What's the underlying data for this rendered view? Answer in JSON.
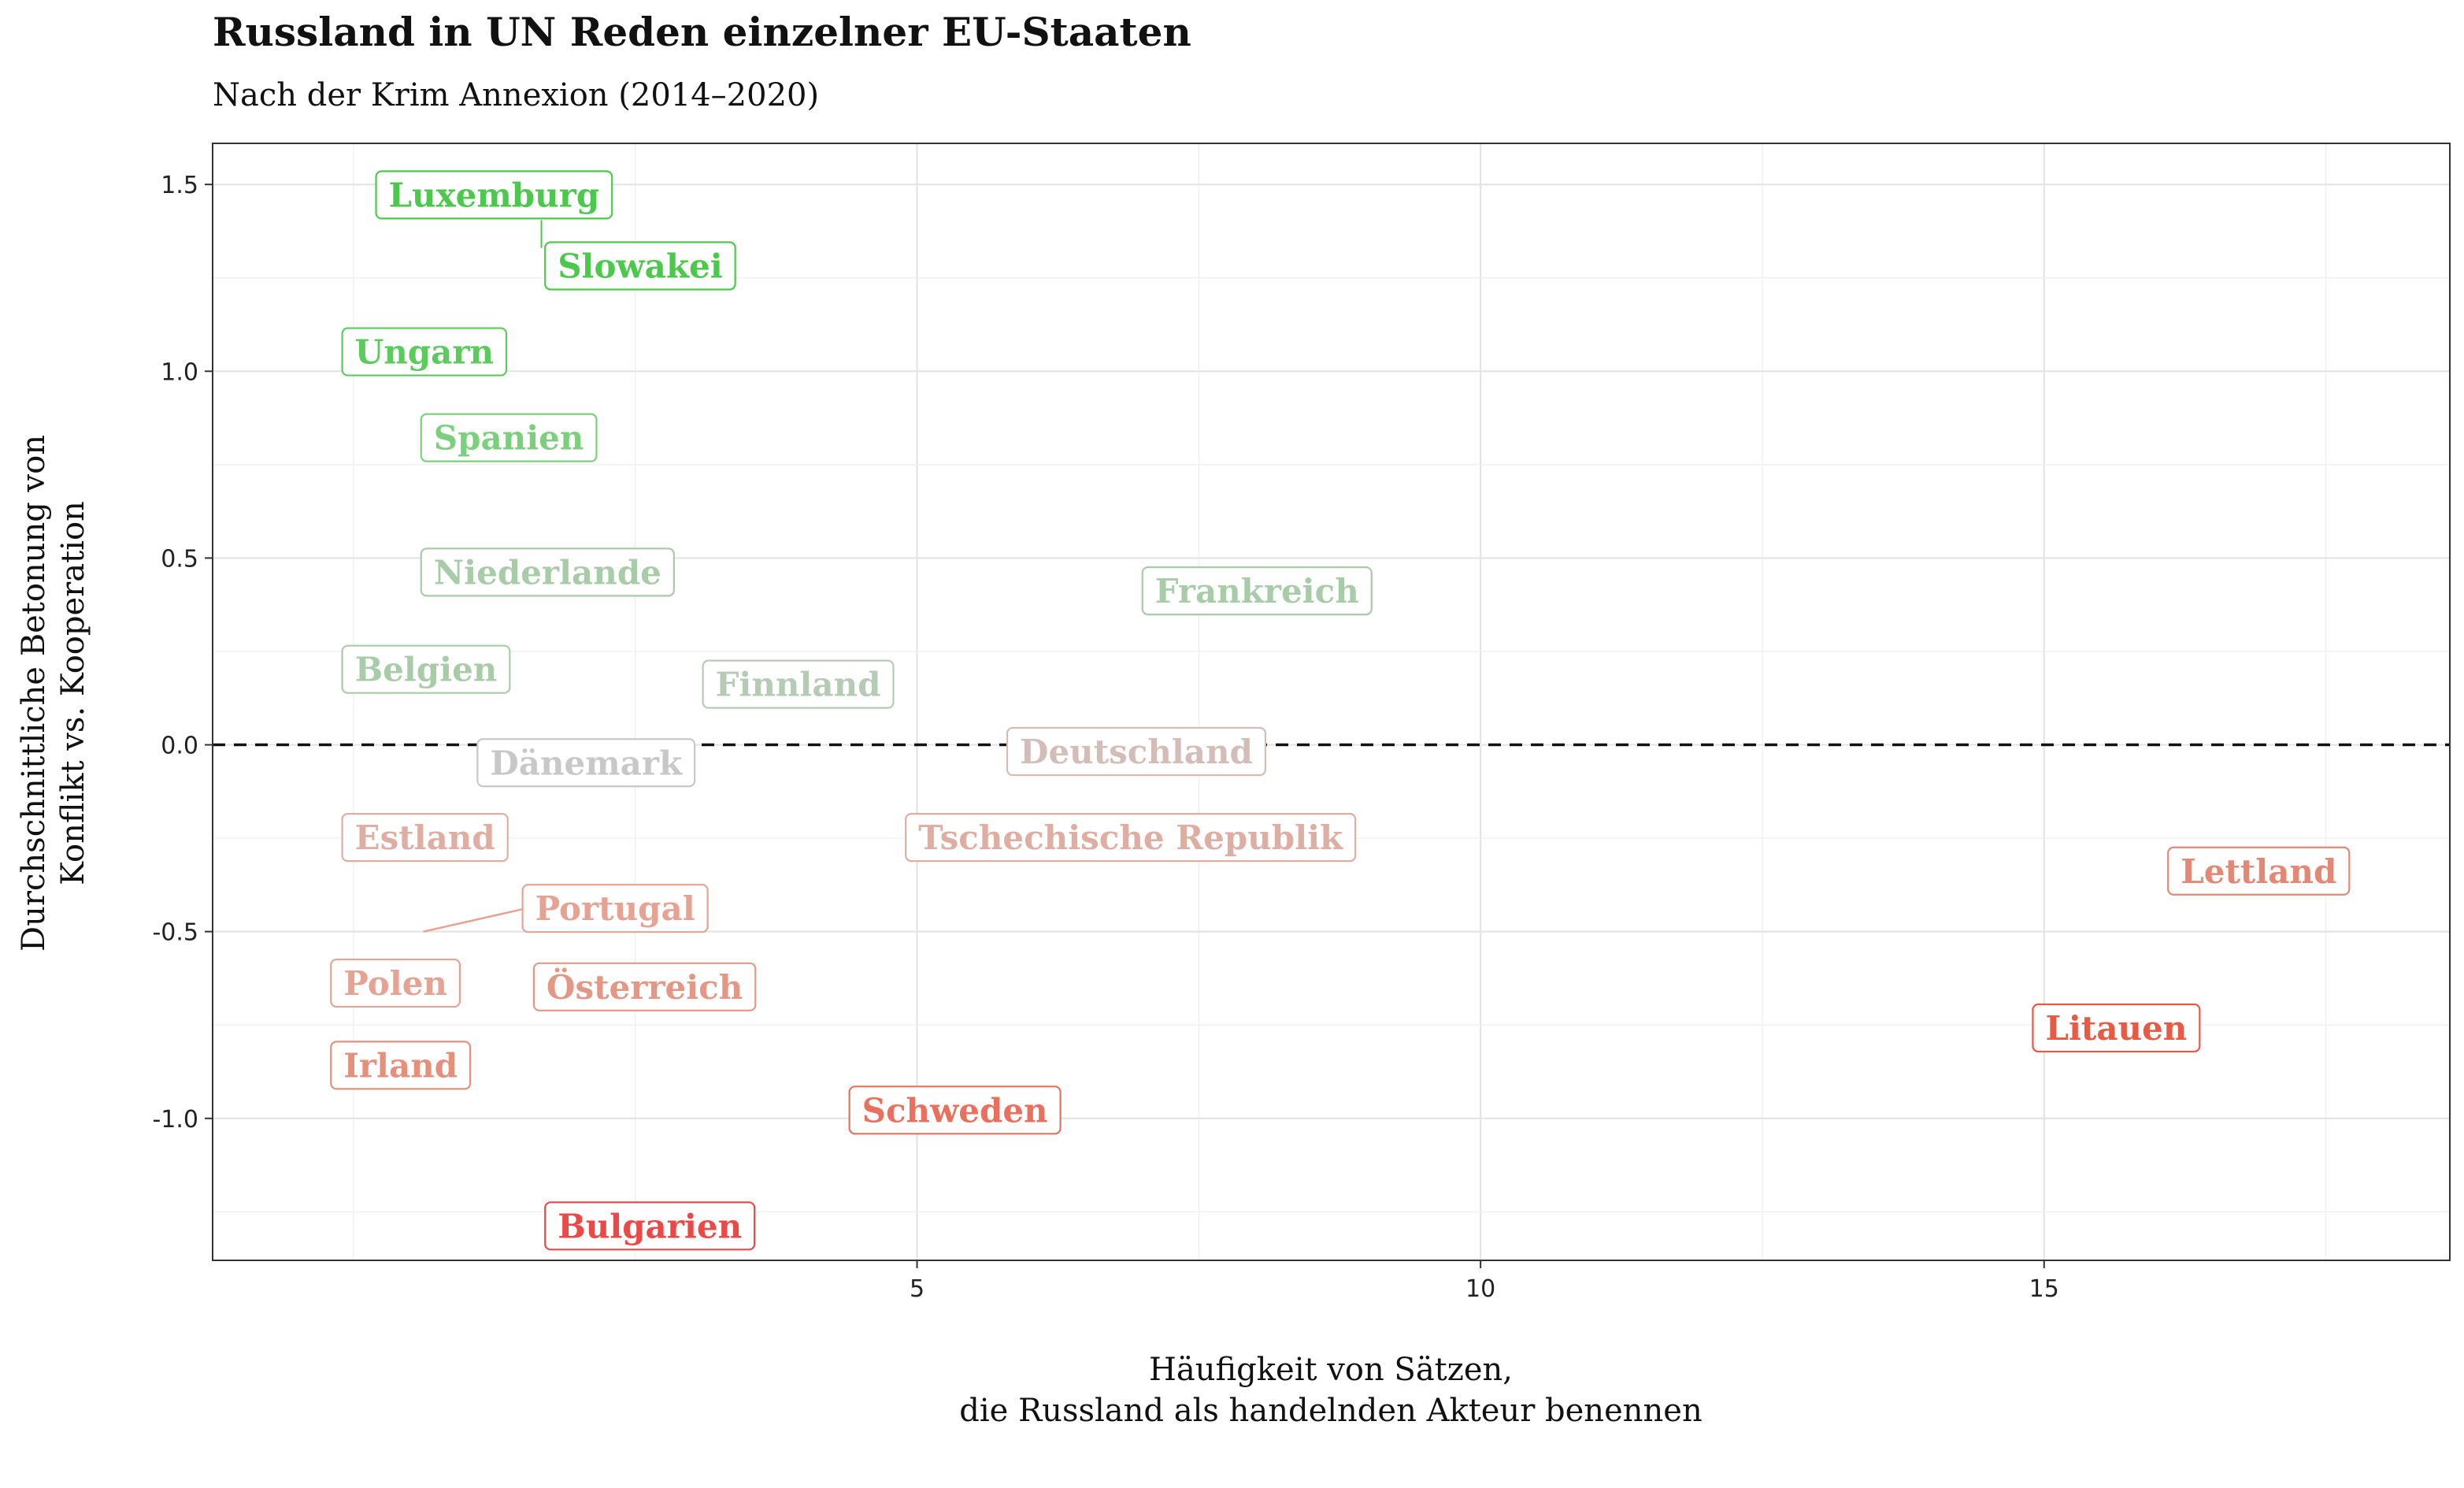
{
  "chart_data": {
    "type": "scatter",
    "title": "Russland in UN Reden einzelner EU-Staaten",
    "subtitle": "Nach der Krim Annexion (2014–2020)",
    "xlabel": [
      "Häufigkeit von Sätzen,",
      "die Russland als handelnden Akteur benennen"
    ],
    "ylabel": [
      "Durchschnittliche Betonung von",
      "Konflikt vs. Kooperation"
    ],
    "xlim": [
      -1.25,
      18.6
    ],
    "ylim": [
      -1.38,
      1.61
    ],
    "x_ticks": [
      5,
      10,
      15
    ],
    "x_tick_labels": [
      "5",
      "10",
      "15"
    ],
    "y_ticks": [
      -1.0,
      -0.5,
      0.0,
      0.5,
      1.0,
      1.5
    ],
    "y_tick_labels": [
      "-1.0",
      "-0.5",
      "0.0",
      "0.5",
      "1.0",
      "1.5"
    ],
    "reference_line": {
      "y": 0,
      "style": "dashed"
    },
    "grid": true,
    "points": [
      {
        "label": "Luxemburg",
        "x": 0.2,
        "y": 1.47,
        "color": "#4cc94c"
      },
      {
        "label": "Slowakei",
        "x": 1.7,
        "y": 1.28,
        "color": "#4cc94c"
      },
      {
        "label": "Ungarn",
        "x": -0.1,
        "y": 1.05,
        "color": "#5bcb5b"
      },
      {
        "label": "Spanien",
        "x": 0.6,
        "y": 0.82,
        "color": "#7ccf7c"
      },
      {
        "label": "Niederlande",
        "x": 0.6,
        "y": 0.46,
        "color": "#a8cca8"
      },
      {
        "label": "Frankreich",
        "x": 7.0,
        "y": 0.41,
        "color": "#a8cca8"
      },
      {
        "label": "Belgien",
        "x": -0.1,
        "y": 0.2,
        "color": "#a8cca8"
      },
      {
        "label": "Finnland",
        "x": 3.1,
        "y": 0.16,
        "color": "#b5cbb5"
      },
      {
        "label": "Deutschland",
        "x": 5.8,
        "y": -0.02,
        "color": "#d4bdb8"
      },
      {
        "label": "Dänemark",
        "x": 1.1,
        "y": -0.05,
        "color": "#c8c8c8"
      },
      {
        "label": "Estland",
        "x": -0.1,
        "y": -0.25,
        "color": "#dfaea2"
      },
      {
        "label": "Tschechische Republik",
        "x": 4.9,
        "y": -0.25,
        "color": "#dfaea2"
      },
      {
        "label": "Lettland",
        "x": 16.1,
        "y": -0.34,
        "color": "#e28874"
      },
      {
        "label": "Portugal",
        "x": 1.5,
        "y": -0.44,
        "color": "#e6a292"
      },
      {
        "label": "Polen",
        "x": -0.2,
        "y": -0.64,
        "color": "#e6a292"
      },
      {
        "label": "Österreich",
        "x": 1.6,
        "y": -0.65,
        "color": "#e39886"
      },
      {
        "label": "Litauen",
        "x": 14.9,
        "y": -0.76,
        "color": "#e65a46"
      },
      {
        "label": "Irland",
        "x": -0.2,
        "y": -0.86,
        "color": "#e6907c"
      },
      {
        "label": "Schweden",
        "x": 4.4,
        "y": -0.98,
        "color": "#e9705c"
      },
      {
        "label": "Bulgarien",
        "x": 1.7,
        "y": -1.29,
        "color": "#ec4848"
      }
    ]
  }
}
